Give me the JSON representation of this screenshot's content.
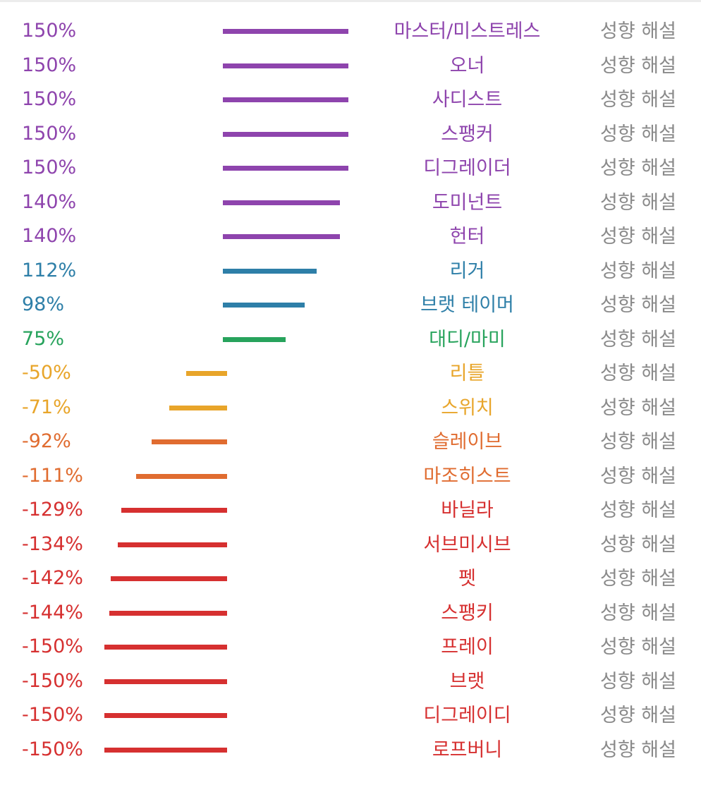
{
  "colors": {
    "purple": "#8e44ad",
    "blue": "#2e7fa8",
    "green": "#27a35c",
    "yellow": "#e8a52a",
    "orange": "#e06c30",
    "red": "#d63030",
    "explain_text": "#8a8a8a"
  },
  "chart_data": {
    "type": "bar",
    "orientation": "horizontal",
    "explain_link_text": "성향 해설",
    "rows": [
      {
        "label": "마스터/미스트레스",
        "value": 150,
        "display": "150%",
        "color": "purple"
      },
      {
        "label": "오너",
        "value": 150,
        "display": "150%",
        "color": "purple"
      },
      {
        "label": "사디스트",
        "value": 150,
        "display": "150%",
        "color": "purple"
      },
      {
        "label": "스팽커",
        "value": 150,
        "display": "150%",
        "color": "purple"
      },
      {
        "label": "디그레이더",
        "value": 150,
        "display": "150%",
        "color": "purple"
      },
      {
        "label": "도미넌트",
        "value": 140,
        "display": "140%",
        "color": "purple"
      },
      {
        "label": "헌터",
        "value": 140,
        "display": "140%",
        "color": "purple"
      },
      {
        "label": "리거",
        "value": 112,
        "display": "112%",
        "color": "blue"
      },
      {
        "label": "브랫 테이머",
        "value": 98,
        "display": "98%",
        "color": "blue"
      },
      {
        "label": "대디/마미",
        "value": 75,
        "display": "75%",
        "color": "green"
      },
      {
        "label": "리틀",
        "value": -50,
        "display": "-50%",
        "color": "yellow"
      },
      {
        "label": "스위치",
        "value": -71,
        "display": "-71%",
        "color": "yellow"
      },
      {
        "label": "슬레이브",
        "value": -92,
        "display": "-92%",
        "color": "orange"
      },
      {
        "label": "마조히스트",
        "value": -111,
        "display": "-111%",
        "color": "orange"
      },
      {
        "label": "바닐라",
        "value": -129,
        "display": "-129%",
        "color": "red"
      },
      {
        "label": "서브미시브",
        "value": -134,
        "display": "-134%",
        "color": "red"
      },
      {
        "label": "펫",
        "value": -142,
        "display": "-142%",
        "color": "red"
      },
      {
        "label": "스팽키",
        "value": -144,
        "display": "-144%",
        "color": "red"
      },
      {
        "label": "프레이",
        "value": -150,
        "display": "-150%",
        "color": "red"
      },
      {
        "label": "브랫",
        "value": -150,
        "display": "-150%",
        "color": "red"
      },
      {
        "label": "디그레이디",
        "value": -150,
        "display": "-150%",
        "color": "red"
      },
      {
        "label": "로프버니",
        "value": -150,
        "display": "-150%",
        "color": "red"
      }
    ]
  }
}
